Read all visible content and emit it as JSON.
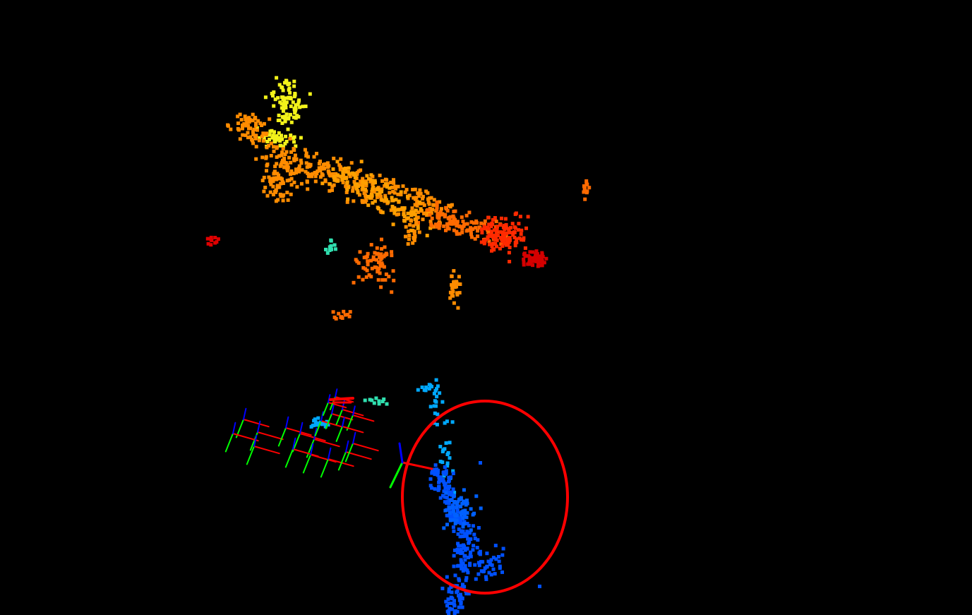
{
  "viewer": {
    "background_color": "#000000",
    "point_colormap": "jet",
    "highlight_color": "#ff0000"
  },
  "point_clusters": [
    {
      "id": "upper-structure-yellow",
      "color": "#f2f21a"
    },
    {
      "id": "upper-structure-orange",
      "color": "#ff8c00"
    },
    {
      "id": "upper-structure-dark-orange",
      "color": "#ff6a00"
    },
    {
      "id": "upper-structure-red",
      "color": "#ff2a00"
    },
    {
      "id": "upper-structure-dark-red",
      "color": "#d40000"
    },
    {
      "id": "lower-structure-blue",
      "color": "#0050ff"
    },
    {
      "id": "lower-structure-light-blue",
      "color": "#00a8ff"
    },
    {
      "id": "lower-structure-cyan",
      "color": "#30e0b0"
    }
  ],
  "axis_colors": {
    "x": "#ff0000",
    "y": "#00ff00",
    "z": "#0000ff"
  },
  "icons": [
    "camera-pose-axes-icon",
    "highlight-circle"
  ]
}
